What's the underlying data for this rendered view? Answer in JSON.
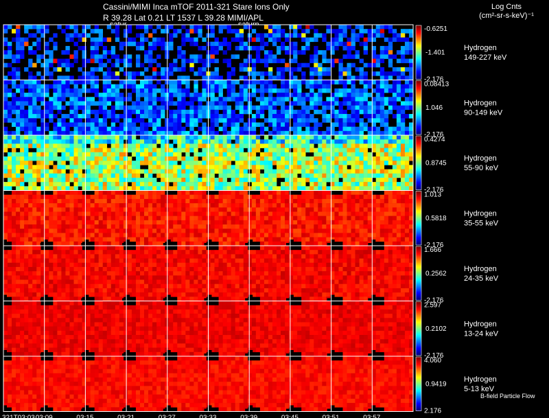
{
  "header": {
    "title": "Cassini/MIMI Inca mTOF  2011-321   Stare   Ions Only",
    "subtitle": "R        39.28  Lat 0.21  LT 1537  L           39.28   MIMI/APL",
    "orbit_labels": [
      "satur",
      "saturn"
    ]
  },
  "units": {
    "line1": "Log Cnts",
    "line2": "(cm²-sr-s-keV)⁻¹"
  },
  "footnote": "B-field Particle Flow",
  "chart_data": {
    "type": "heatmap",
    "title": "Cassini/MIMI Inca mTOF  2011-321   Stare   Ions Only",
    "xlabel": "",
    "x_ticks": [
      "321T03:03",
      "03:09",
      "03:15",
      "03:21",
      "03:27",
      "03:33",
      "03:39",
      "03:45",
      "03:51",
      "03:57"
    ],
    "colormap": "jet",
    "grid": true,
    "panels": [
      {
        "species": "Hydrogen",
        "energy": "149-227 keV",
        "cb_max": "-0.6251",
        "cb_mid": "-1.401",
        "cb_min": "-2.176",
        "level": 0.18,
        "noise": 0.12,
        "holes": 0.42,
        "cross": false
      },
      {
        "species": "Hydrogen",
        "energy": "90-149 keV",
        "cb_max": "0.08413",
        "cb_mid": "1.046",
        "cb_min": "-2.176",
        "level": 0.22,
        "noise": 0.14,
        "holes": 0.18,
        "cross": false
      },
      {
        "species": "Hydrogen",
        "energy": "55-90 keV",
        "cb_max": "0.4274",
        "cb_mid": "0.8745",
        "cb_min": "-2.176",
        "level": 0.55,
        "noise": 0.2,
        "holes": 0.05,
        "cross": false
      },
      {
        "species": "Hydrogen",
        "energy": "35-55 keV",
        "cb_max": "1.013",
        "cb_mid": "0.5818",
        "cb_min": "-2.176",
        "level": 0.86,
        "noise": 0.06,
        "holes": 0.0,
        "cross": true
      },
      {
        "species": "Hydrogen",
        "energy": "24-35 keV",
        "cb_max": "1.666",
        "cb_mid": "0.2562",
        "cb_min": "-2.176",
        "level": 0.88,
        "noise": 0.05,
        "holes": 0.0,
        "cross": true
      },
      {
        "species": "Hydrogen",
        "energy": "13-24 keV",
        "cb_max": "2.597",
        "cb_mid": "0.2102",
        "cb_min": "-2.176",
        "level": 0.89,
        "noise": 0.04,
        "holes": 0.0,
        "cross": true
      },
      {
        "species": "Hydrogen",
        "energy": "5-13 keV",
        "cb_max": "4.060",
        "cb_mid": "0.9419",
        "cb_min": "2.176",
        "level": 0.87,
        "noise": 0.04,
        "holes": 0.0,
        "cross": true
      }
    ]
  }
}
